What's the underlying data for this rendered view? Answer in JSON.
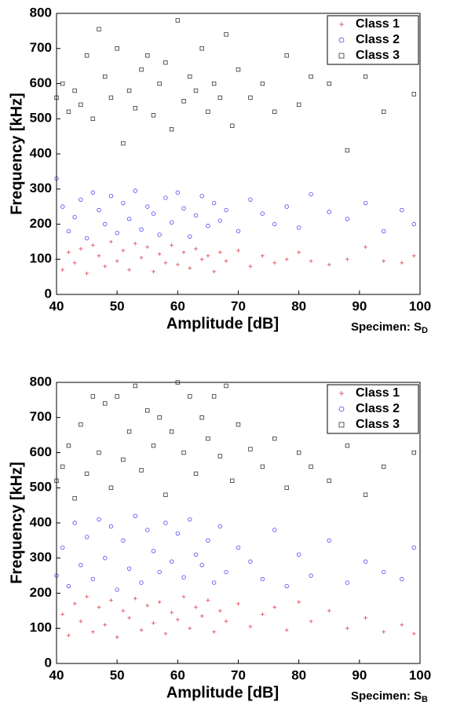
{
  "chart_data": [
    {
      "type": "scatter",
      "xlabel": "Amplitude [dB]",
      "ylabel": "Frequency [kHz]",
      "annotation": {
        "text": "Specimen: S",
        "subscript": "D"
      },
      "xlim": [
        40,
        100
      ],
      "xticks": [
        40,
        50,
        60,
        70,
        80,
        90,
        100
      ],
      "ylim": [
        0,
        800
      ],
      "yticks": [
        0,
        100,
        200,
        300,
        400,
        500,
        600,
        700,
        800
      ],
      "legend": "upper right",
      "series": [
        {
          "name": "Class 1",
          "color": "#e8606a",
          "marker": "plus",
          "x": [
            40,
            41,
            42,
            43,
            44,
            45,
            46,
            47,
            48,
            49,
            50,
            51,
            52,
            53,
            54,
            55,
            56,
            57,
            58,
            59,
            60,
            61,
            62,
            63,
            64,
            65,
            66,
            67,
            68,
            70,
            72,
            74,
            76,
            78,
            80,
            82,
            85,
            88,
            91,
            94,
            97,
            99
          ],
          "values": [
            100,
            70,
            120,
            90,
            130,
            60,
            140,
            110,
            80,
            150,
            95,
            125,
            70,
            145,
            105,
            135,
            65,
            115,
            90,
            140,
            85,
            120,
            75,
            130,
            100,
            110,
            65,
            120,
            95,
            125,
            80,
            110,
            90,
            100,
            120,
            95,
            85,
            100,
            135,
            95,
            90,
            110
          ]
        },
        {
          "name": "Class 2",
          "color": "#4a4af0",
          "marker": "circle",
          "x": [
            40,
            41,
            42,
            43,
            44,
            45,
            46,
            47,
            48,
            49,
            50,
            51,
            52,
            53,
            54,
            55,
            56,
            57,
            58,
            59,
            60,
            61,
            62,
            63,
            64,
            65,
            66,
            67,
            68,
            70,
            72,
            74,
            76,
            78,
            80,
            82,
            85,
            88,
            91,
            94,
            97,
            99
          ],
          "values": [
            330,
            250,
            180,
            220,
            270,
            160,
            290,
            240,
            200,
            280,
            175,
            260,
            215,
            295,
            185,
            250,
            230,
            170,
            275,
            205,
            290,
            245,
            165,
            225,
            280,
            195,
            260,
            210,
            240,
            180,
            270,
            230,
            200,
            250,
            190,
            285,
            235,
            215,
            260,
            180,
            240,
            200
          ]
        },
        {
          "name": "Class 3",
          "color": "#333333",
          "marker": "square",
          "x": [
            40,
            41,
            42,
            43,
            44,
            45,
            46,
            47,
            48,
            49,
            50,
            51,
            52,
            53,
            54,
            55,
            56,
            57,
            58,
            59,
            60,
            61,
            62,
            63,
            64,
            65,
            66,
            67,
            68,
            69,
            70,
            72,
            74,
            76,
            78,
            80,
            82,
            85,
            88,
            91,
            94,
            99
          ],
          "values": [
            560,
            600,
            520,
            580,
            540,
            680,
            500,
            755,
            620,
            560,
            700,
            430,
            580,
            530,
            640,
            680,
            510,
            600,
            660,
            470,
            780,
            550,
            620,
            580,
            700,
            520,
            600,
            560,
            740,
            480,
            640,
            560,
            600,
            520,
            680,
            540,
            620,
            600,
            410,
            620,
            520,
            570
          ]
        }
      ]
    },
    {
      "type": "scatter",
      "xlabel": "Amplitude [dB]",
      "ylabel": "Frequency [kHz]",
      "annotation": {
        "text": "Specimen: S",
        "subscript": "B"
      },
      "xlim": [
        40,
        100
      ],
      "xticks": [
        40,
        50,
        60,
        70,
        80,
        90,
        100
      ],
      "ylim": [
        0,
        800
      ],
      "yticks": [
        0,
        100,
        200,
        300,
        400,
        500,
        600,
        700,
        800
      ],
      "legend": "upper right",
      "series": [
        {
          "name": "Class 1",
          "color": "#e8606a",
          "marker": "plus",
          "x": [
            40,
            41,
            42,
            43,
            44,
            45,
            46,
            47,
            48,
            49,
            50,
            51,
            52,
            53,
            54,
            55,
            56,
            57,
            58,
            59,
            60,
            61,
            62,
            63,
            64,
            65,
            66,
            67,
            68,
            70,
            72,
            74,
            76,
            78,
            80,
            82,
            85,
            88,
            91,
            94,
            97,
            99
          ],
          "values": [
            100,
            140,
            80,
            170,
            120,
            190,
            90,
            160,
            110,
            180,
            75,
            150,
            130,
            185,
            95,
            165,
            115,
            175,
            85,
            145,
            125,
            190,
            100,
            160,
            135,
            180,
            90,
            150,
            120,
            170,
            105,
            140,
            160,
            95,
            175,
            120,
            150,
            100,
            130,
            90,
            110,
            85
          ]
        },
        {
          "name": "Class 2",
          "color": "#4a4af0",
          "marker": "circle",
          "x": [
            40,
            41,
            42,
            43,
            44,
            45,
            46,
            47,
            48,
            49,
            50,
            51,
            52,
            53,
            54,
            55,
            56,
            57,
            58,
            59,
            60,
            61,
            62,
            63,
            64,
            65,
            66,
            67,
            68,
            70,
            72,
            74,
            76,
            78,
            80,
            82,
            85,
            88,
            91,
            94,
            97,
            99
          ],
          "values": [
            250,
            330,
            220,
            400,
            280,
            360,
            240,
            410,
            300,
            390,
            210,
            350,
            270,
            420,
            230,
            380,
            320,
            260,
            400,
            290,
            370,
            245,
            410,
            310,
            280,
            350,
            230,
            390,
            260,
            330,
            290,
            240,
            380,
            220,
            310,
            250,
            350,
            230,
            290,
            260,
            240,
            330
          ]
        },
        {
          "name": "Class 3",
          "color": "#333333",
          "marker": "square",
          "x": [
            40,
            41,
            42,
            43,
            44,
            45,
            46,
            47,
            48,
            49,
            50,
            51,
            52,
            53,
            54,
            55,
            56,
            57,
            58,
            59,
            60,
            61,
            62,
            63,
            64,
            65,
            66,
            67,
            68,
            69,
            70,
            72,
            74,
            76,
            78,
            80,
            82,
            85,
            88,
            91,
            94,
            99
          ],
          "values": [
            520,
            560,
            620,
            470,
            680,
            540,
            760,
            600,
            740,
            500,
            760,
            580,
            660,
            790,
            550,
            720,
            620,
            700,
            480,
            660,
            800,
            600,
            760,
            540,
            700,
            640,
            760,
            590,
            790,
            520,
            680,
            610,
            560,
            640,
            500,
            600,
            560,
            520,
            620,
            480,
            560,
            600
          ]
        }
      ]
    }
  ]
}
